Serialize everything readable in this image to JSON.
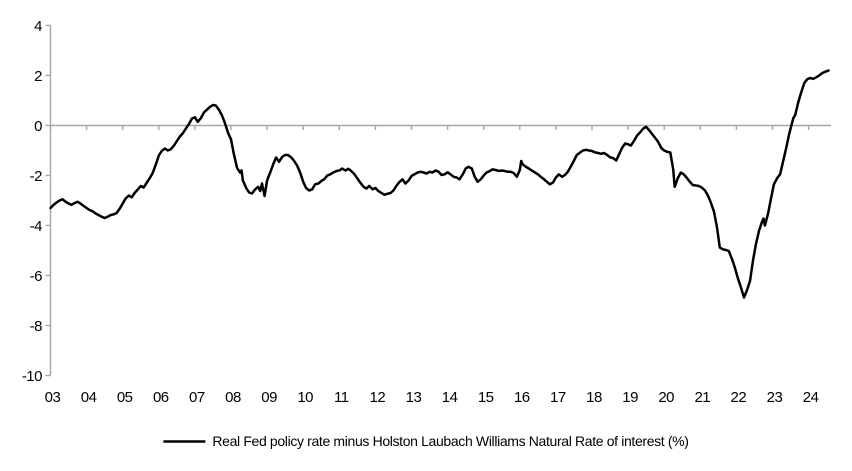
{
  "chart_data": {
    "type": "line",
    "title": "",
    "legend": "Real Fed policy rate minus Holston Laubach Williams Natural Rate of interest (%)",
    "legend_position": "bottom-center",
    "x_ticks": [
      "03",
      "04",
      "05",
      "06",
      "07",
      "08",
      "09",
      "10",
      "11",
      "12",
      "13",
      "14",
      "15",
      "16",
      "17",
      "18",
      "19",
      "20",
      "21",
      "22",
      "23",
      "24"
    ],
    "y_ticks": [
      "4",
      "2",
      "0",
      "-2",
      "-4",
      "-6",
      "-8",
      "-10"
    ],
    "y_tick_values": [
      4,
      2,
      0,
      -2,
      -4,
      -6,
      -8,
      -10
    ],
    "ylim": [
      -10,
      4
    ],
    "xlim_years": [
      2003,
      2024.7
    ],
    "grid": "zero-line-only",
    "colors": {
      "line": "#000000",
      "axis": "#a6a6a6",
      "text": "#000000"
    },
    "series": [
      {
        "name": "Real Fed policy rate minus Holston Laubach Williams Natural Rate of interest (%)",
        "points": [
          [
            2003.0,
            -3.3
          ],
          [
            2003.08,
            -3.18
          ],
          [
            2003.17,
            -3.08
          ],
          [
            2003.25,
            -3.0
          ],
          [
            2003.33,
            -2.95
          ],
          [
            2003.42,
            -3.05
          ],
          [
            2003.5,
            -3.12
          ],
          [
            2003.58,
            -3.17
          ],
          [
            2003.67,
            -3.1
          ],
          [
            2003.75,
            -3.05
          ],
          [
            2003.83,
            -3.12
          ],
          [
            2003.92,
            -3.22
          ],
          [
            2004.0,
            -3.3
          ],
          [
            2004.08,
            -3.38
          ],
          [
            2004.17,
            -3.43
          ],
          [
            2004.25,
            -3.52
          ],
          [
            2004.33,
            -3.58
          ],
          [
            2004.42,
            -3.65
          ],
          [
            2004.5,
            -3.7
          ],
          [
            2004.58,
            -3.65
          ],
          [
            2004.67,
            -3.58
          ],
          [
            2004.75,
            -3.55
          ],
          [
            2004.83,
            -3.5
          ],
          [
            2004.92,
            -3.32
          ],
          [
            2005.0,
            -3.12
          ],
          [
            2005.08,
            -2.92
          ],
          [
            2005.17,
            -2.8
          ],
          [
            2005.25,
            -2.87
          ],
          [
            2005.33,
            -2.7
          ],
          [
            2005.42,
            -2.55
          ],
          [
            2005.5,
            -2.42
          ],
          [
            2005.58,
            -2.48
          ],
          [
            2005.67,
            -2.28
          ],
          [
            2005.75,
            -2.1
          ],
          [
            2005.83,
            -1.9
          ],
          [
            2005.92,
            -1.55
          ],
          [
            2006.0,
            -1.2
          ],
          [
            2006.08,
            -1.02
          ],
          [
            2006.17,
            -0.92
          ],
          [
            2006.25,
            -1.0
          ],
          [
            2006.33,
            -0.95
          ],
          [
            2006.42,
            -0.8
          ],
          [
            2006.5,
            -0.62
          ],
          [
            2006.58,
            -0.45
          ],
          [
            2006.67,
            -0.3
          ],
          [
            2006.75,
            -0.12
          ],
          [
            2006.83,
            0.05
          ],
          [
            2006.92,
            0.28
          ],
          [
            2007.0,
            0.33
          ],
          [
            2007.08,
            0.15
          ],
          [
            2007.17,
            0.3
          ],
          [
            2007.25,
            0.52
          ],
          [
            2007.33,
            0.63
          ],
          [
            2007.42,
            0.75
          ],
          [
            2007.5,
            0.82
          ],
          [
            2007.58,
            0.8
          ],
          [
            2007.67,
            0.62
          ],
          [
            2007.75,
            0.4
          ],
          [
            2007.83,
            0.1
          ],
          [
            2007.92,
            -0.3
          ],
          [
            2008.0,
            -0.55
          ],
          [
            2008.08,
            -1.15
          ],
          [
            2008.17,
            -1.7
          ],
          [
            2008.25,
            -1.88
          ],
          [
            2008.29,
            -1.8
          ],
          [
            2008.33,
            -2.2
          ],
          [
            2008.42,
            -2.5
          ],
          [
            2008.5,
            -2.68
          ],
          [
            2008.58,
            -2.72
          ],
          [
            2008.67,
            -2.55
          ],
          [
            2008.75,
            -2.45
          ],
          [
            2008.81,
            -2.62
          ],
          [
            2008.86,
            -2.32
          ],
          [
            2008.93,
            -2.82
          ],
          [
            2009.0,
            -2.2
          ],
          [
            2009.08,
            -1.9
          ],
          [
            2009.17,
            -1.55
          ],
          [
            2009.25,
            -1.28
          ],
          [
            2009.33,
            -1.45
          ],
          [
            2009.42,
            -1.25
          ],
          [
            2009.5,
            -1.18
          ],
          [
            2009.58,
            -1.18
          ],
          [
            2009.67,
            -1.28
          ],
          [
            2009.75,
            -1.42
          ],
          [
            2009.83,
            -1.6
          ],
          [
            2009.92,
            -1.9
          ],
          [
            2010.0,
            -2.25
          ],
          [
            2010.08,
            -2.5
          ],
          [
            2010.17,
            -2.6
          ],
          [
            2010.25,
            -2.55
          ],
          [
            2010.33,
            -2.35
          ],
          [
            2010.42,
            -2.32
          ],
          [
            2010.5,
            -2.22
          ],
          [
            2010.58,
            -2.15
          ],
          [
            2010.67,
            -2.0
          ],
          [
            2010.75,
            -1.95
          ],
          [
            2010.83,
            -1.88
          ],
          [
            2010.92,
            -1.82
          ],
          [
            2011.0,
            -1.8
          ],
          [
            2011.08,
            -1.72
          ],
          [
            2011.17,
            -1.8
          ],
          [
            2011.25,
            -1.73
          ],
          [
            2011.33,
            -1.82
          ],
          [
            2011.42,
            -1.95
          ],
          [
            2011.5,
            -2.12
          ],
          [
            2011.58,
            -2.28
          ],
          [
            2011.67,
            -2.45
          ],
          [
            2011.75,
            -2.52
          ],
          [
            2011.83,
            -2.42
          ],
          [
            2011.92,
            -2.55
          ],
          [
            2012.0,
            -2.5
          ],
          [
            2012.08,
            -2.62
          ],
          [
            2012.17,
            -2.7
          ],
          [
            2012.25,
            -2.77
          ],
          [
            2012.33,
            -2.73
          ],
          [
            2012.42,
            -2.7
          ],
          [
            2012.5,
            -2.6
          ],
          [
            2012.58,
            -2.42
          ],
          [
            2012.67,
            -2.25
          ],
          [
            2012.75,
            -2.15
          ],
          [
            2012.83,
            -2.32
          ],
          [
            2012.92,
            -2.2
          ],
          [
            2013.0,
            -2.02
          ],
          [
            2013.08,
            -1.95
          ],
          [
            2013.17,
            -1.88
          ],
          [
            2013.25,
            -1.85
          ],
          [
            2013.33,
            -1.88
          ],
          [
            2013.42,
            -1.92
          ],
          [
            2013.5,
            -1.85
          ],
          [
            2013.58,
            -1.88
          ],
          [
            2013.67,
            -1.8
          ],
          [
            2013.75,
            -1.85
          ],
          [
            2013.83,
            -1.98
          ],
          [
            2013.92,
            -1.95
          ],
          [
            2014.0,
            -1.87
          ],
          [
            2014.08,
            -1.95
          ],
          [
            2014.17,
            -2.05
          ],
          [
            2014.25,
            -2.08
          ],
          [
            2014.33,
            -2.15
          ],
          [
            2014.42,
            -1.95
          ],
          [
            2014.5,
            -1.72
          ],
          [
            2014.58,
            -1.65
          ],
          [
            2014.67,
            -1.72
          ],
          [
            2014.75,
            -2.05
          ],
          [
            2014.83,
            -2.25
          ],
          [
            2014.92,
            -2.15
          ],
          [
            2015.0,
            -2.0
          ],
          [
            2015.08,
            -1.88
          ],
          [
            2015.17,
            -1.82
          ],
          [
            2015.25,
            -1.75
          ],
          [
            2015.33,
            -1.78
          ],
          [
            2015.42,
            -1.82
          ],
          [
            2015.5,
            -1.8
          ],
          [
            2015.58,
            -1.82
          ],
          [
            2015.67,
            -1.85
          ],
          [
            2015.75,
            -1.85
          ],
          [
            2015.83,
            -1.9
          ],
          [
            2015.92,
            -2.05
          ],
          [
            2016.0,
            -1.78
          ],
          [
            2016.04,
            -1.42
          ],
          [
            2016.08,
            -1.55
          ],
          [
            2016.17,
            -1.65
          ],
          [
            2016.25,
            -1.72
          ],
          [
            2016.33,
            -1.8
          ],
          [
            2016.42,
            -1.88
          ],
          [
            2016.5,
            -1.95
          ],
          [
            2016.58,
            -2.05
          ],
          [
            2016.67,
            -2.15
          ],
          [
            2016.75,
            -2.25
          ],
          [
            2016.83,
            -2.35
          ],
          [
            2016.92,
            -2.28
          ],
          [
            2017.0,
            -2.08
          ],
          [
            2017.08,
            -1.95
          ],
          [
            2017.17,
            -2.05
          ],
          [
            2017.25,
            -1.98
          ],
          [
            2017.33,
            -1.85
          ],
          [
            2017.42,
            -1.62
          ],
          [
            2017.5,
            -1.4
          ],
          [
            2017.58,
            -1.18
          ],
          [
            2017.67,
            -1.08
          ],
          [
            2017.75,
            -1.0
          ],
          [
            2017.83,
            -0.97
          ],
          [
            2017.92,
            -1.0
          ],
          [
            2018.0,
            -1.02
          ],
          [
            2018.08,
            -1.07
          ],
          [
            2018.17,
            -1.1
          ],
          [
            2018.25,
            -1.13
          ],
          [
            2018.33,
            -1.1
          ],
          [
            2018.42,
            -1.18
          ],
          [
            2018.5,
            -1.27
          ],
          [
            2018.58,
            -1.3
          ],
          [
            2018.67,
            -1.4
          ],
          [
            2018.75,
            -1.15
          ],
          [
            2018.83,
            -0.9
          ],
          [
            2018.92,
            -0.72
          ],
          [
            2019.0,
            -0.75
          ],
          [
            2019.08,
            -0.8
          ],
          [
            2019.17,
            -0.6
          ],
          [
            2019.25,
            -0.4
          ],
          [
            2019.33,
            -0.28
          ],
          [
            2019.42,
            -0.12
          ],
          [
            2019.5,
            -0.05
          ],
          [
            2019.58,
            -0.18
          ],
          [
            2019.67,
            -0.35
          ],
          [
            2019.75,
            -0.5
          ],
          [
            2019.83,
            -0.65
          ],
          [
            2019.92,
            -0.9
          ],
          [
            2020.0,
            -1.0
          ],
          [
            2020.08,
            -1.05
          ],
          [
            2020.17,
            -1.08
          ],
          [
            2020.25,
            -1.75
          ],
          [
            2020.29,
            -2.45
          ],
          [
            2020.38,
            -2.1
          ],
          [
            2020.46,
            -1.88
          ],
          [
            2020.54,
            -1.95
          ],
          [
            2020.63,
            -2.1
          ],
          [
            2020.71,
            -2.25
          ],
          [
            2020.79,
            -2.38
          ],
          [
            2020.88,
            -2.4
          ],
          [
            2020.96,
            -2.42
          ],
          [
            2021.04,
            -2.48
          ],
          [
            2021.13,
            -2.6
          ],
          [
            2021.21,
            -2.8
          ],
          [
            2021.29,
            -3.08
          ],
          [
            2021.38,
            -3.45
          ],
          [
            2021.46,
            -4.05
          ],
          [
            2021.54,
            -4.88
          ],
          [
            2021.63,
            -4.95
          ],
          [
            2021.71,
            -4.98
          ],
          [
            2021.79,
            -5.02
          ],
          [
            2021.88,
            -5.35
          ],
          [
            2021.96,
            -5.7
          ],
          [
            2022.04,
            -6.1
          ],
          [
            2022.13,
            -6.5
          ],
          [
            2022.21,
            -6.88
          ],
          [
            2022.29,
            -6.6
          ],
          [
            2022.38,
            -6.2
          ],
          [
            2022.46,
            -5.4
          ],
          [
            2022.54,
            -4.75
          ],
          [
            2022.63,
            -4.2
          ],
          [
            2022.71,
            -3.85
          ],
          [
            2022.75,
            -3.72
          ],
          [
            2022.79,
            -4.0
          ],
          [
            2022.88,
            -3.5
          ],
          [
            2022.96,
            -2.9
          ],
          [
            2023.04,
            -2.35
          ],
          [
            2023.13,
            -2.1
          ],
          [
            2023.21,
            -1.95
          ],
          [
            2023.29,
            -1.45
          ],
          [
            2023.38,
            -0.9
          ],
          [
            2023.46,
            -0.35
          ],
          [
            2023.54,
            0.1
          ],
          [
            2023.58,
            0.3
          ],
          [
            2023.63,
            0.42
          ],
          [
            2023.71,
            0.9
          ],
          [
            2023.79,
            1.3
          ],
          [
            2023.88,
            1.7
          ],
          [
            2023.96,
            1.85
          ],
          [
            2024.04,
            1.9
          ],
          [
            2024.13,
            1.87
          ],
          [
            2024.21,
            1.93
          ],
          [
            2024.29,
            2.0
          ],
          [
            2024.38,
            2.1
          ],
          [
            2024.46,
            2.15
          ],
          [
            2024.55,
            2.2
          ]
        ]
      }
    ]
  }
}
